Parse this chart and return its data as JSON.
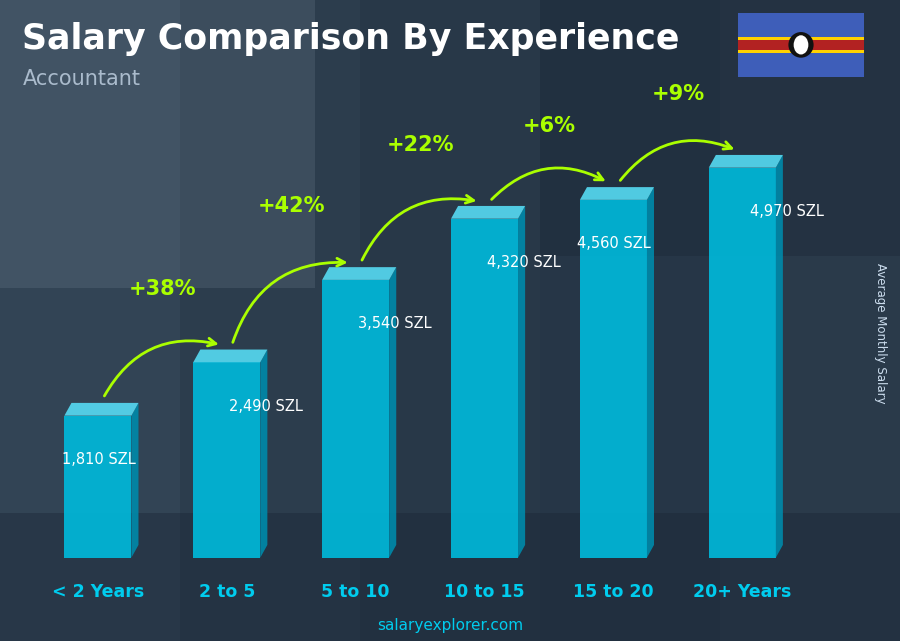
{
  "title": "Salary Comparison By Experience",
  "subtitle": "Accountant",
  "ylabel": "Average Monthly Salary",
  "watermark": "salaryexplorer.com",
  "categories": [
    "< 2 Years",
    "2 to 5",
    "5 to 10",
    "10 to 15",
    "15 to 20",
    "20+ Years"
  ],
  "values": [
    1810,
    2490,
    3540,
    4320,
    4560,
    4970
  ],
  "value_labels": [
    "1,810 SZL",
    "2,490 SZL",
    "3,540 SZL",
    "4,320 SZL",
    "4,560 SZL",
    "4,970 SZL"
  ],
  "pct_changes": [
    null,
    "+38%",
    "+42%",
    "+22%",
    "+6%",
    "+9%"
  ],
  "bar_color_main": "#00b8d9",
  "bar_color_side": "#0088a8",
  "bar_color_top": "#55d8f0",
  "bg_color": "#2a3a4a",
  "title_color": "#ffffff",
  "subtitle_color": "#aabbcc",
  "label_color": "#ffffff",
  "pct_color": "#aaff00",
  "category_color": "#00ccee",
  "watermark_color": "#00ccee",
  "ylabel_color": "#ccddee",
  "ylim_max": 5800,
  "title_fontsize": 25,
  "subtitle_fontsize": 15,
  "value_fontsize": 10.5,
  "pct_fontsize": 15,
  "cat_fontsize": 12.5
}
